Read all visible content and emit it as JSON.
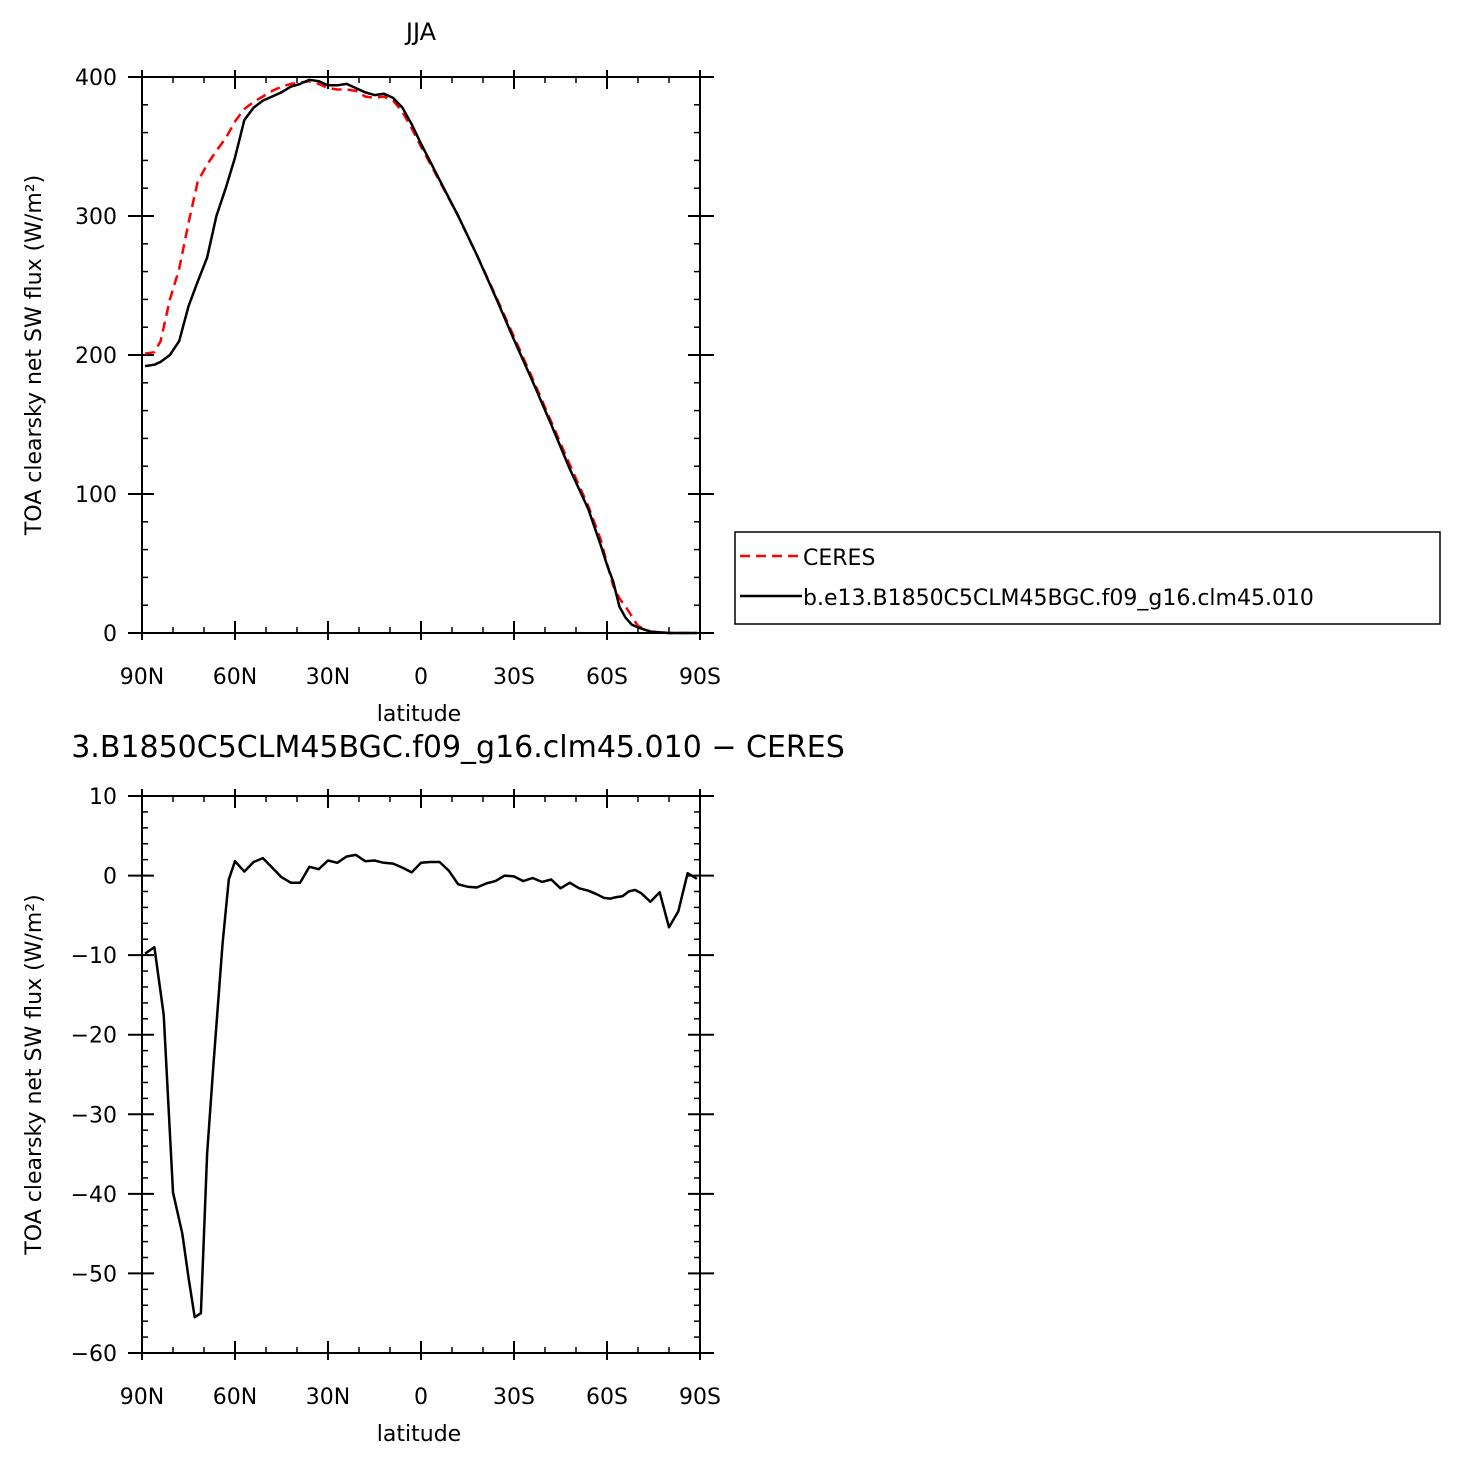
{
  "colors": {
    "ceres": "#ff0000",
    "model": "#000000",
    "axis": "#000000"
  },
  "chart_data": [
    {
      "type": "line",
      "title": "JJA",
      "xlabel": "latitude",
      "ylabel": "TOA clearsky net SW flux (W/m²)",
      "xlim": [
        90,
        -90
      ],
      "ylim": [
        0,
        400
      ],
      "xticks": [
        90,
        60,
        30,
        0,
        -30,
        -60,
        -90
      ],
      "xtick_labels": [
        "90N",
        "60N",
        "30N",
        "0",
        "30S",
        "60S",
        "90S"
      ],
      "yticks": [
        0,
        100,
        200,
        300,
        400
      ],
      "ytick_labels": [
        "0",
        "100",
        "200",
        "300",
        "400"
      ],
      "legend_position": "right",
      "series": [
        {
          "name": "CERES",
          "style": "dashed",
          "x": [
            89,
            86,
            84,
            81,
            78,
            75,
            72,
            69,
            66,
            63,
            60,
            57,
            54,
            51,
            48,
            45,
            42,
            39,
            36,
            33,
            30,
            27,
            24,
            21,
            18,
            15,
            12,
            9,
            6,
            3,
            0,
            -6,
            -12,
            -18,
            -24,
            -30,
            -36,
            -42,
            -48,
            -54,
            -58,
            -60,
            -62,
            -64,
            -66,
            -68,
            -70,
            -74,
            -80,
            -86,
            -89
          ],
          "y": [
            201,
            202,
            210,
            240,
            262,
            295,
            325,
            337,
            347,
            356,
            368,
            377,
            382,
            386,
            390,
            393,
            395,
            396,
            397,
            395,
            392,
            391,
            391,
            390,
            386,
            385,
            386,
            383,
            375,
            363,
            350,
            325,
            300,
            272,
            243,
            213,
            183,
            152,
            121,
            91,
            67,
            50,
            34,
            25,
            19,
            12,
            5,
            1,
            0,
            0,
            0
          ]
        },
        {
          "name": "b.e13.B1850C5CLM45BGC.f09_g16.clm45.010",
          "style": "solid",
          "x": [
            89,
            86,
            84,
            81,
            78,
            75,
            72,
            69,
            66,
            63,
            60,
            57,
            54,
            51,
            48,
            45,
            42,
            39,
            36,
            33,
            30,
            27,
            24,
            21,
            18,
            15,
            12,
            9,
            6,
            3,
            0,
            -6,
            -12,
            -18,
            -24,
            -30,
            -36,
            -42,
            -48,
            -54,
            -58,
            -60,
            -62,
            -64,
            -66,
            -68,
            -70,
            -74,
            -80,
            -86,
            -89
          ],
          "y": [
            192,
            193,
            195,
            200,
            210,
            235,
            253,
            270,
            300,
            320,
            342,
            369,
            378,
            383,
            386,
            389,
            393,
            395,
            398,
            397,
            394,
            394,
            395,
            392,
            389,
            387,
            388,
            385,
            378,
            366,
            352,
            326,
            300,
            272,
            242,
            211,
            181,
            150,
            118,
            89,
            63,
            49,
            37,
            19,
            11,
            6,
            4,
            1,
            0,
            0,
            0
          ]
        }
      ]
    },
    {
      "type": "line",
      "title": "3.B1850C5CLM45BGC.f09_g16.clm45.010 − CERES",
      "xlabel": "latitude",
      "ylabel": "TOA clearsky net SW flux (W/m²)",
      "xlim": [
        90,
        -90
      ],
      "ylim": [
        -60,
        10
      ],
      "xticks": [
        90,
        60,
        30,
        0,
        -30,
        -60,
        -90
      ],
      "xtick_labels": [
        "90N",
        "60N",
        "30N",
        "0",
        "30S",
        "60S",
        "90S"
      ],
      "yticks": [
        10,
        0,
        -10,
        -20,
        -30,
        -40,
        -50,
        -60
      ],
      "ytick_labels": [
        "10",
        "0",
        "−10",
        "−20",
        "−30",
        "−40",
        "−50",
        "−60"
      ],
      "series": [
        {
          "style": "solid",
          "x": [
            89,
            86,
            83,
            80,
            77,
            75,
            73,
            71,
            69,
            67,
            64,
            62,
            60,
            57,
            54,
            51,
            48,
            45,
            42,
            39,
            36,
            33,
            30,
            27,
            24,
            21,
            18,
            15,
            12,
            9,
            6,
            3,
            0,
            -3,
            -6,
            -9,
            -12,
            -15,
            -18,
            -21,
            -24,
            -27,
            -30,
            -33,
            -36,
            -39,
            -42,
            -45,
            -48,
            -51,
            -54,
            -57,
            -59,
            -61,
            -63,
            -65,
            -67,
            -69,
            -71,
            -74,
            -77,
            -80,
            -83,
            -86,
            -89
          ],
          "y": [
            -9.8,
            -9.0,
            -17.5,
            -39.8,
            -45,
            -50.5,
            -55.5,
            -55,
            -35,
            -24,
            -8.5,
            -0.5,
            1.8,
            0.5,
            1.7,
            2.2,
            1.0,
            -0.2,
            -0.9,
            -0.9,
            1.1,
            0.8,
            1.9,
            1.6,
            2.4,
            2.6,
            1.8,
            1.9,
            1.6,
            1.5,
            1.0,
            0.4,
            1.6,
            1.7,
            1.7,
            0.6,
            -1.1,
            -1.4,
            -1.5,
            -1.0,
            -0.7,
            0.0,
            -0.1,
            -0.7,
            -0.3,
            -0.8,
            -0.5,
            -1.6,
            -0.9,
            -1.6,
            -1.9,
            -2.4,
            -2.8,
            -2.9,
            -2.7,
            -2.6,
            -2.0,
            -1.8,
            -2.2,
            -3.3,
            -2.1,
            -6.5,
            -4.5,
            0.3,
            -0.4
          ]
        }
      ]
    }
  ]
}
